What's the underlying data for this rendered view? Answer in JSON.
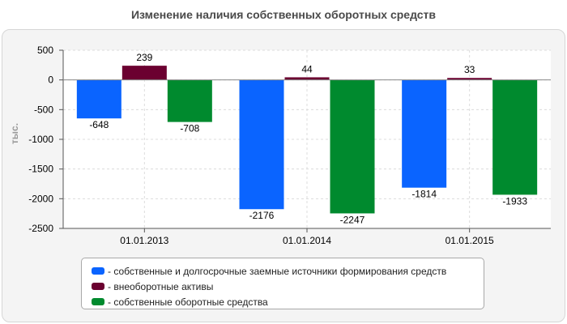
{
  "chart_data": {
    "type": "bar",
    "title": "Изменение наличия собственных оборотных средств",
    "ylabel": "тыс.",
    "xlabel": "",
    "categories": [
      "01.01.2013",
      "01.01.2014",
      "01.01.2015"
    ],
    "ylim": [
      -2500,
      500
    ],
    "yticks": [
      500,
      0,
      -500,
      -1000,
      -1500,
      -2000,
      -2500
    ],
    "grid": true,
    "legend_position": "bottom",
    "series": [
      {
        "name": "- собственные и долгосрочные заемные источники формирования средств",
        "color": "#0a64ff",
        "values": [
          -648,
          -2176,
          -1814
        ]
      },
      {
        "name": "- внеоборотные активы",
        "color": "#6b0030",
        "values": [
          239,
          44,
          33
        ]
      },
      {
        "name": "- собственные оборотные средства",
        "color": "#008a2e",
        "values": [
          -708,
          -2247,
          -1933
        ]
      }
    ]
  }
}
